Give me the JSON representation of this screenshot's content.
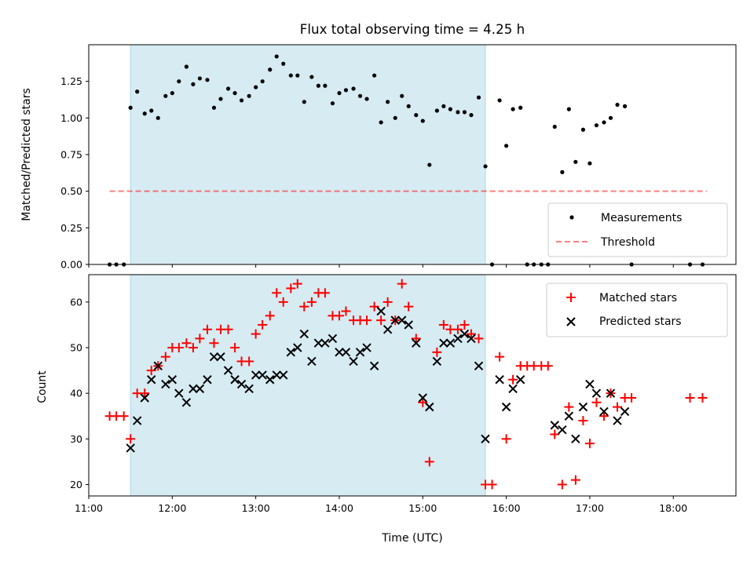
{
  "chart_data": {
    "title": "Flux total observing time = 4.25 h",
    "xlabel": "Time (UTC)",
    "x_unit": "hours UTC",
    "xlim": [
      11.0,
      18.75
    ],
    "x_ticks": [
      11,
      12,
      13,
      14,
      15,
      16,
      17,
      18
    ],
    "x_tick_labels": [
      "11:00",
      "12:00",
      "13:00",
      "14:00",
      "15:00",
      "16:00",
      "17:00",
      "18:00"
    ],
    "colors": {
      "shade": "#add8e6",
      "measurements": "#000000",
      "threshold": "#ff0000",
      "matched": "#ff0000",
      "predicted": "#000000"
    },
    "shaded_interval": [
      11.5,
      15.75
    ],
    "panels": [
      {
        "type": "scatter",
        "ylabel": "Matched/Predicted stars",
        "ylim": [
          0,
          1.5
        ],
        "y_ticks": [
          0,
          0.25,
          0.5,
          0.75,
          1.0,
          1.25
        ],
        "y_tick_labels": [
          "0.00",
          "0.25",
          "0.50",
          "0.75",
          "1.00",
          "1.25"
        ],
        "legend_position": "lower-right",
        "series": [
          {
            "name": "Measurements",
            "marker": "dot",
            "x": [
              11.25,
              11.33,
              11.42,
              11.5,
              11.58,
              11.67,
              11.75,
              11.83,
              11.92,
              12.0,
              12.08,
              12.17,
              12.25,
              12.33,
              12.42,
              12.5,
              12.58,
              12.67,
              12.75,
              12.83,
              12.92,
              13.0,
              13.08,
              13.17,
              13.25,
              13.33,
              13.42,
              13.5,
              13.58,
              13.67,
              13.75,
              13.83,
              13.92,
              14.0,
              14.08,
              14.17,
              14.25,
              14.33,
              14.42,
              14.5,
              14.58,
              14.67,
              14.75,
              14.83,
              14.92,
              15.0,
              15.08,
              15.17,
              15.25,
              15.33,
              15.42,
              15.5,
              15.58,
              15.67,
              15.75,
              15.83,
              15.92,
              16.0,
              16.08,
              16.17,
              16.25,
              16.33,
              16.42,
              16.5,
              16.58,
              16.67,
              16.75,
              16.83,
              16.92,
              17.0,
              17.08,
              17.17,
              17.25,
              17.33,
              17.42,
              17.5,
              18.2,
              18.35
            ],
            "y": [
              0.0,
              0.0,
              0.0,
              1.07,
              1.18,
              1.03,
              1.05,
              1.0,
              1.15,
              1.17,
              1.25,
              1.35,
              1.23,
              1.27,
              1.26,
              1.07,
              1.13,
              1.2,
              1.17,
              1.12,
              1.15,
              1.21,
              1.25,
              1.33,
              1.42,
              1.37,
              1.29,
              1.29,
              1.11,
              1.28,
              1.22,
              1.22,
              1.1,
              1.17,
              1.19,
              1.2,
              1.15,
              1.13,
              1.29,
              0.97,
              1.11,
              1.0,
              1.15,
              1.08,
              1.02,
              0.98,
              0.68,
              1.05,
              1.08,
              1.06,
              1.04,
              1.04,
              1.02,
              1.14,
              0.67,
              0.0,
              1.12,
              0.81,
              1.06,
              1.07,
              0.0,
              0.0,
              0.0,
              0.0,
              0.94,
              0.63,
              1.06,
              0.7,
              0.92,
              0.69,
              0.95,
              0.97,
              1.0,
              1.09,
              1.08,
              0.0,
              0.0,
              0.0
            ]
          },
          {
            "name": "Threshold",
            "style": "dashed",
            "x": [
              11.25,
              18.4
            ],
            "y": [
              0.5,
              0.5
            ]
          }
        ]
      },
      {
        "type": "scatter",
        "ylabel": "Count",
        "ylim": [
          17.5,
          66.0
        ],
        "y_ticks": [
          20,
          30,
          40,
          50,
          60
        ],
        "y_tick_labels": [
          "20",
          "30",
          "40",
          "50",
          "60"
        ],
        "legend_position": "upper-right",
        "series": [
          {
            "name": "Matched stars",
            "marker": "plus",
            "x": [
              11.25,
              11.33,
              11.42,
              11.5,
              11.58,
              11.67,
              11.75,
              11.83,
              11.92,
              12.0,
              12.08,
              12.17,
              12.25,
              12.33,
              12.42,
              12.5,
              12.58,
              12.67,
              12.75,
              12.83,
              12.92,
              13.0,
              13.08,
              13.17,
              13.25,
              13.33,
              13.42,
              13.5,
              13.58,
              13.67,
              13.75,
              13.83,
              13.92,
              14.0,
              14.08,
              14.17,
              14.25,
              14.33,
              14.42,
              14.5,
              14.58,
              14.67,
              14.75,
              14.83,
              14.92,
              15.0,
              15.08,
              15.17,
              15.25,
              15.33,
              15.42,
              15.5,
              15.58,
              15.67,
              15.75,
              15.83,
              15.92,
              16.0,
              16.08,
              16.17,
              16.25,
              16.33,
              16.42,
              16.5,
              16.58,
              16.67,
              16.75,
              16.83,
              16.92,
              17.0,
              17.08,
              17.17,
              17.25,
              17.33,
              17.42,
              17.5,
              18.2,
              18.35
            ],
            "y": [
              35,
              35,
              35,
              30,
              40,
              40,
              45,
              46,
              48,
              50,
              50,
              51,
              50,
              52,
              54,
              51,
              54,
              54,
              50,
              47,
              47,
              53,
              55,
              57,
              62,
              60,
              63,
              64,
              59,
              60,
              62,
              62,
              57,
              57,
              58,
              56,
              56,
              56,
              59,
              56,
              60,
              56,
              64,
              59,
              52,
              38,
              25,
              49,
              55,
              54,
              54,
              55,
              53,
              52,
              20,
              20,
              48,
              30,
              43,
              46,
              46,
              46,
              46,
              46,
              31,
              20,
              37,
              21,
              34,
              29,
              38,
              35,
              40,
              37,
              39,
              39,
              39,
              39
            ]
          },
          {
            "name": "Predicted stars",
            "marker": "x",
            "x": [
              11.5,
              11.58,
              11.67,
              11.75,
              11.83,
              11.92,
              12.0,
              12.08,
              12.17,
              12.25,
              12.33,
              12.42,
              12.5,
              12.58,
              12.67,
              12.75,
              12.83,
              12.92,
              13.0,
              13.08,
              13.17,
              13.25,
              13.33,
              13.42,
              13.5,
              13.58,
              13.67,
              13.75,
              13.83,
              13.92,
              14.0,
              14.08,
              14.17,
              14.25,
              14.33,
              14.42,
              14.5,
              14.58,
              14.67,
              14.75,
              14.83,
              14.92,
              15.0,
              15.08,
              15.17,
              15.25,
              15.33,
              15.42,
              15.5,
              15.58,
              15.67,
              15.75,
              15.92,
              16.0,
              16.08,
              16.17,
              16.58,
              16.67,
              16.75,
              16.83,
              16.92,
              17.0,
              17.08,
              17.17,
              17.25,
              17.33,
              17.42
            ],
            "y": [
              28,
              34,
              39,
              43,
              46,
              42,
              43,
              40,
              38,
              41,
              41,
              43,
              48,
              48,
              45,
              43,
              42,
              41,
              44,
              44,
              43,
              44,
              44,
              49,
              50,
              53,
              47,
              51,
              51,
              52,
              49,
              49,
              47,
              49,
              50,
              46,
              58,
              54,
              56,
              56,
              55,
              51,
              39,
              37,
              47,
              51,
              51,
              52,
              53,
              52,
              46,
              30,
              43,
              37,
              41,
              43,
              33,
              32,
              35,
              30,
              37,
              42,
              40,
              36,
              40,
              34,
              36
            ]
          }
        ]
      }
    ]
  }
}
